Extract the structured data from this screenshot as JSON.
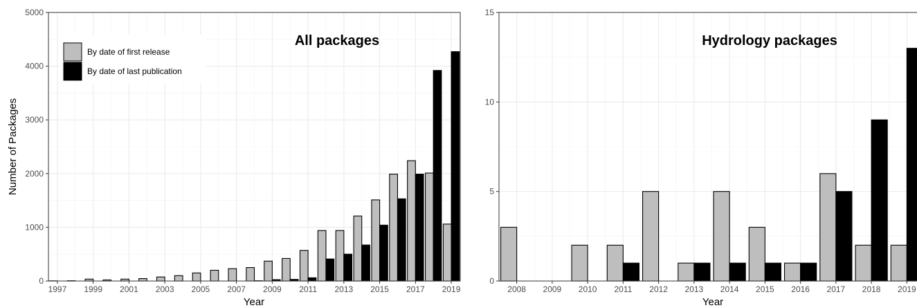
{
  "chart_data": [
    {
      "type": "bar",
      "title": "All packages",
      "xlabel": "Year",
      "ylabel": "Number of Packages",
      "ylim": [
        0,
        5000
      ],
      "yticks": [
        0,
        1000,
        2000,
        3000,
        4000,
        5000
      ],
      "xlim": [
        1996.5,
        2019.5
      ],
      "xticks": [
        "1997",
        "1999",
        "2001",
        "2003",
        "2005",
        "2007",
        "2009",
        "2011",
        "2013",
        "2015",
        "2017",
        "2019"
      ],
      "grid": true,
      "legend_position": "top-left",
      "x": [
        1997,
        1998,
        1999,
        2000,
        2001,
        2002,
        2003,
        2004,
        2005,
        2006,
        2007,
        2008,
        2009,
        2010,
        2011,
        2012,
        2013,
        2014,
        2015,
        2016,
        2017,
        2018,
        2019
      ],
      "series": [
        {
          "name": "By date of first release",
          "color": "#bebebe",
          "values": [
            3,
            5,
            35,
            20,
            35,
            45,
            75,
            100,
            150,
            200,
            230,
            250,
            370,
            420,
            570,
            940,
            940,
            1210,
            1510,
            1990,
            2240,
            2010,
            1060
          ]
        },
        {
          "name": "By date of last publication",
          "color": "#000000",
          "values": [
            0,
            0,
            0,
            0,
            0,
            0,
            0,
            0,
            0,
            0,
            0,
            5,
            25,
            30,
            60,
            410,
            500,
            670,
            1040,
            1530,
            1990,
            3920,
            4270
          ]
        }
      ]
    },
    {
      "type": "bar",
      "title": "Hydrology packages",
      "xlabel": "Year",
      "ylabel": "",
      "ylim": [
        0,
        15
      ],
      "yticks": [
        0,
        5,
        10,
        15
      ],
      "xlim": [
        2007.5,
        2019.5
      ],
      "xticks": [
        "2008",
        "2009",
        "2010",
        "2011",
        "2012",
        "2013",
        "2014",
        "2015",
        "2016",
        "2017",
        "2018",
        "2019"
      ],
      "grid": true,
      "x": [
        2008,
        2009,
        2010,
        2011,
        2012,
        2013,
        2014,
        2015,
        2016,
        2017,
        2018,
        2019
      ],
      "series": [
        {
          "name": "By date of first release",
          "color": "#bebebe",
          "values": [
            3,
            0,
            2,
            2,
            5,
            1,
            5,
            3,
            1,
            6,
            2,
            2
          ]
        },
        {
          "name": "By date of last publication",
          "color": "#000000",
          "values": [
            0,
            0,
            0,
            1,
            0,
            1,
            1,
            1,
            1,
            5,
            9,
            13
          ]
        }
      ]
    }
  ]
}
